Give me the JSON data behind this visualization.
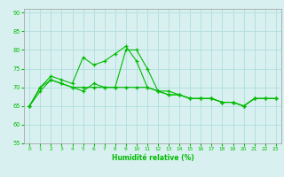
{
  "xlabel": "Humidité relative (%)",
  "bg_color": "#d8f0f0",
  "grid_color": "#b0dede",
  "line_color": "#00bb00",
  "xlim": [
    -0.5,
    23.5
  ],
  "ylim": [
    55,
    91
  ],
  "yticks": [
    55,
    60,
    65,
    70,
    75,
    80,
    85,
    90
  ],
  "xticks": [
    0,
    1,
    2,
    3,
    4,
    5,
    6,
    7,
    8,
    9,
    10,
    11,
    12,
    13,
    14,
    15,
    16,
    17,
    18,
    19,
    20,
    21,
    22,
    23
  ],
  "x_values": [
    0,
    1,
    2,
    3,
    4,
    5,
    6,
    7,
    8,
    9,
    10,
    11,
    12,
    13,
    14,
    15,
    16,
    17,
    18,
    19,
    20,
    21,
    22,
    23
  ],
  "s1": [
    65,
    69,
    72,
    71,
    70,
    69,
    71,
    70,
    70,
    80,
    80,
    75,
    69,
    68,
    68,
    67,
    67,
    67,
    66,
    66,
    65,
    67,
    67,
    67
  ],
  "s2": [
    65,
    70,
    73,
    72,
    71,
    78,
    76,
    77,
    79,
    81,
    77,
    70,
    69,
    69,
    68,
    67,
    67,
    67,
    66,
    66,
    65,
    67,
    67,
    67
  ],
  "s3": [
    65,
    70,
    72,
    71,
    70,
    70,
    70,
    70,
    70,
    70,
    70,
    70,
    69,
    68,
    68,
    67,
    67,
    67,
    66,
    66,
    65,
    67,
    67,
    67
  ]
}
